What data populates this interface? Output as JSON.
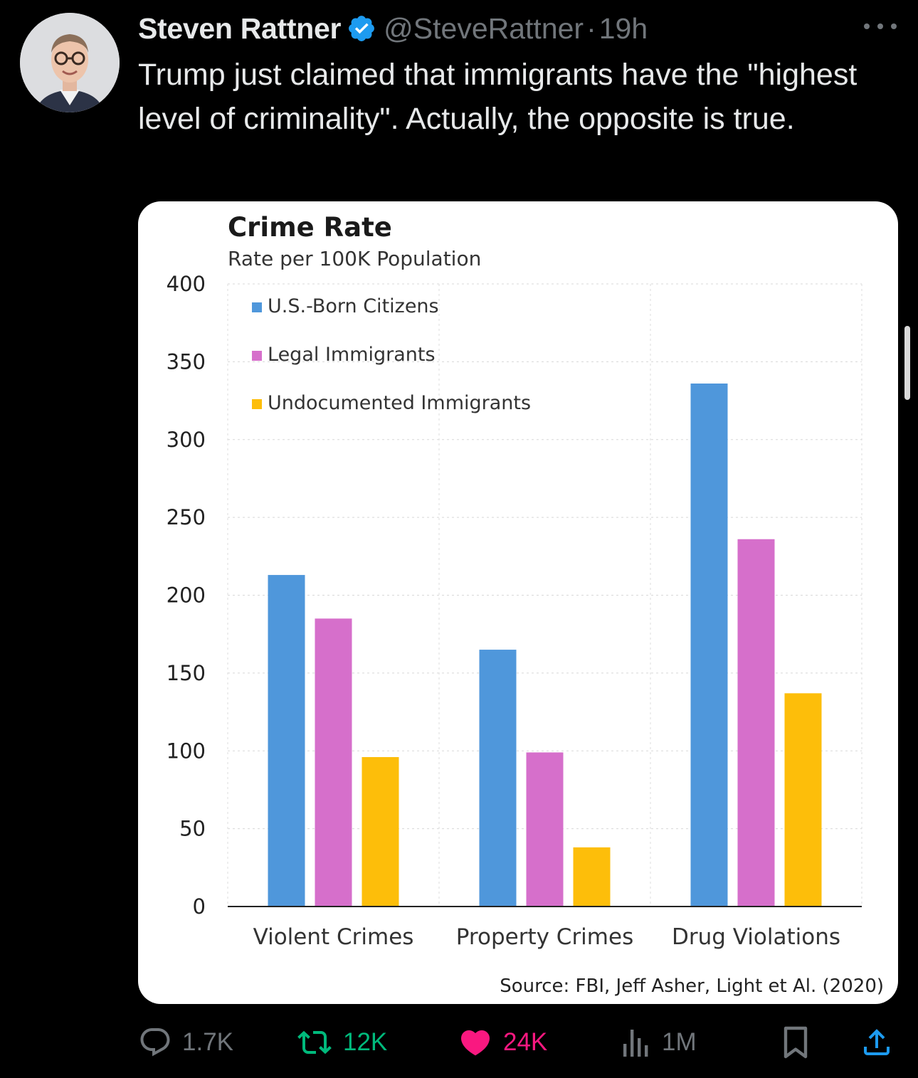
{
  "author": {
    "name": "Steven Rattner",
    "handle": "@SteveRattner",
    "separator": "·",
    "time": "19h",
    "verified_icon": "verified-badge-icon",
    "badge_color": "#1d9bf0"
  },
  "tweet": {
    "text": "Trump just claimed that immigrants have the \"highest level of criminality\". Actually, the opposite is true."
  },
  "chart_data": {
    "type": "bar",
    "title": "Crime Rate",
    "subtitle": "Rate per 100K Population",
    "categories": [
      "Violent Crimes",
      "Property Crimes",
      "Drug Violations"
    ],
    "series": [
      {
        "name": "U.S.-Born Citizens",
        "color": "#4f97db",
        "values": [
          213,
          165,
          336
        ]
      },
      {
        "name": "Legal Immigrants",
        "color": "#d66fcb",
        "values": [
          185,
          99,
          236
        ]
      },
      {
        "name": "Undocumented Immigrants",
        "color": "#fdbe0a",
        "values": [
          96,
          38,
          137
        ]
      }
    ],
    "ylim": [
      0,
      400
    ],
    "yticks": [
      0,
      50,
      100,
      150,
      200,
      250,
      300,
      350,
      400
    ],
    "grid": true,
    "legend_position": "top-left",
    "source": "Source: FBI, Jeff Asher, Light et Al. (2020)"
  },
  "actions": {
    "reply": {
      "count": "1.7K",
      "icon": "reply-icon"
    },
    "retweet": {
      "count": "12K",
      "icon": "retweet-icon"
    },
    "like": {
      "count": "24K",
      "icon": "heart-icon"
    },
    "views": {
      "count": "1M",
      "icon": "views-icon"
    },
    "bookmark": {
      "icon": "bookmark-icon"
    },
    "share": {
      "icon": "share-icon"
    }
  }
}
